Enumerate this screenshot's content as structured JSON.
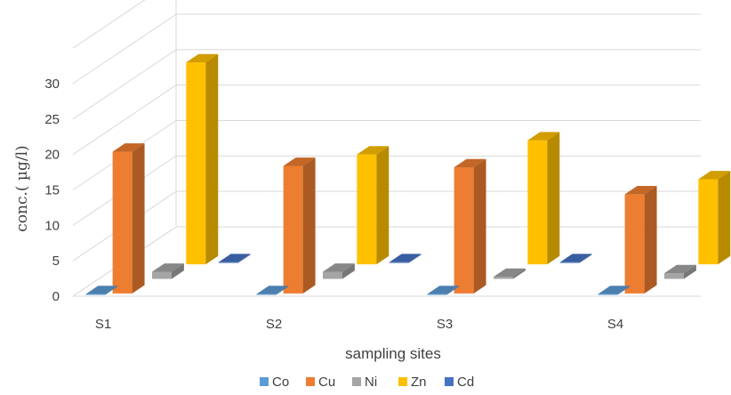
{
  "chart_data": {
    "type": "bar",
    "style": "3d-clustered",
    "categories": [
      "S1",
      "S2",
      "S3",
      "S4"
    ],
    "series": [
      {
        "name": "Co",
        "values": [
          0.1,
          0.1,
          0.1,
          0.1
        ],
        "color": "#5b9bd5"
      },
      {
        "name": "Cu",
        "values": [
          20.0,
          18.0,
          17.8,
          14.0
        ],
        "color": "#ed7d31"
      },
      {
        "name": "Ni",
        "values": [
          1.0,
          1.0,
          0.3,
          0.8
        ],
        "color": "#a5a5a5"
      },
      {
        "name": "Zn",
        "values": [
          28.5,
          15.5,
          17.5,
          12.0
        ],
        "color": "#ffc000"
      },
      {
        "name": "Cd",
        "values": [
          0.1,
          0.1,
          0.1,
          0.1
        ],
        "color": "#4472c4"
      }
    ],
    "yticks": [
      0,
      5,
      10,
      15,
      20,
      25,
      30
    ],
    "ylim": [
      0,
      30
    ],
    "xlabel": "sampling sites",
    "ylabel": "conc.( µg/l)",
    "grid": true,
    "legend": "bottom"
  }
}
